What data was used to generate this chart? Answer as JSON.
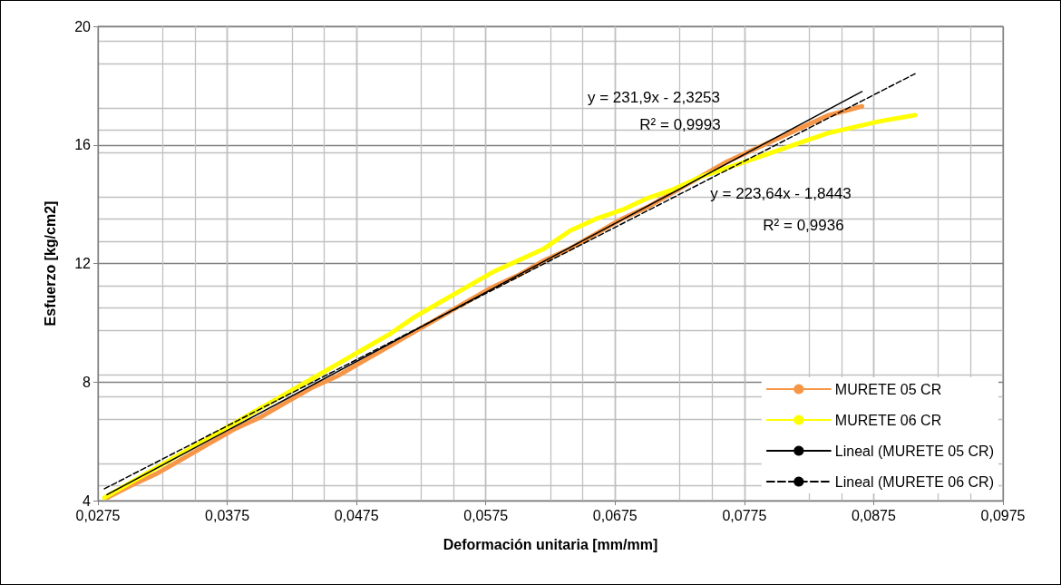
{
  "chart_data": {
    "type": "line",
    "xlabel": "Deformación unitaria [mm/mm]",
    "ylabel": "Esfuerzo [kg/cm2]",
    "xlim": [
      0.0275,
      0.0975
    ],
    "ylim": [
      4,
      20
    ],
    "xticks": [
      {
        "value": 0.0275,
        "label": "0,0275"
      },
      {
        "value": 0.0375,
        "label": "0,0375"
      },
      {
        "value": 0.0475,
        "label": "0,0475"
      },
      {
        "value": 0.0575,
        "label": "0,0575"
      },
      {
        "value": 0.0675,
        "label": "0,0675"
      },
      {
        "value": 0.0775,
        "label": "0,0775"
      },
      {
        "value": 0.0875,
        "label": "0,0875"
      },
      {
        "value": 0.0975,
        "label": "0,0975"
      }
    ],
    "yticks": [
      4,
      8,
      12,
      16,
      20
    ],
    "grid": true,
    "legend": "bottom right",
    "marker": "none",
    "series": [
      {
        "name": "MURETE 05 CR",
        "color": "#f79646",
        "x": [
          0.0282,
          0.03,
          0.032,
          0.034,
          0.036,
          0.038,
          0.04,
          0.042,
          0.044,
          0.046,
          0.048,
          0.05,
          0.052,
          0.054,
          0.056,
          0.058,
          0.06,
          0.062,
          0.064,
          0.066,
          0.068,
          0.07,
          0.072,
          0.074,
          0.076,
          0.078,
          0.08,
          0.082,
          0.084,
          0.0866
        ],
        "values": [
          4.1,
          4.5,
          4.9,
          5.4,
          5.9,
          6.4,
          6.8,
          7.3,
          7.8,
          8.2,
          8.7,
          9.2,
          9.7,
          10.2,
          10.7,
          11.2,
          11.6,
          12.1,
          12.5,
          13.0,
          13.5,
          13.9,
          14.4,
          14.9,
          15.4,
          15.8,
          16.2,
          16.6,
          17.0,
          17.3
        ]
      },
      {
        "name": "MURETE 06 CR",
        "color": "#ffff00",
        "x": [
          0.028,
          0.03,
          0.032,
          0.034,
          0.036,
          0.038,
          0.04,
          0.042,
          0.044,
          0.046,
          0.048,
          0.05,
          0.052,
          0.054,
          0.056,
          0.058,
          0.06,
          0.062,
          0.064,
          0.066,
          0.068,
          0.07,
          0.072,
          0.074,
          0.076,
          0.078,
          0.08,
          0.082,
          0.084,
          0.086,
          0.088,
          0.0907
        ],
        "values": [
          4.1,
          4.6,
          5.1,
          5.6,
          6.1,
          6.6,
          7.1,
          7.6,
          8.1,
          8.6,
          9.1,
          9.6,
          10.2,
          10.7,
          11.2,
          11.7,
          12.1,
          12.5,
          13.1,
          13.5,
          13.8,
          14.2,
          14.5,
          14.9,
          15.2,
          15.5,
          15.8,
          16.1,
          16.4,
          16.6,
          16.8,
          17.0
        ]
      },
      {
        "name": "Lineal (MURETE 05 CR)",
        "color": "#000000",
        "line_style": "solid",
        "x": [
          0.0282,
          0.0866
        ],
        "values": [
          4.2,
          17.8
        ]
      },
      {
        "name": "Lineal (MURETE 06 CR)",
        "color": "#000000",
        "line_style": "dashed",
        "x": [
          0.028,
          0.0907
        ],
        "values": [
          4.4,
          18.4
        ]
      }
    ],
    "annotations": [
      "y = 231,9x - 2,3253",
      "R² = 0,9993",
      "y = 223,64x - 1,8443",
      "R² = 0,9936"
    ]
  }
}
